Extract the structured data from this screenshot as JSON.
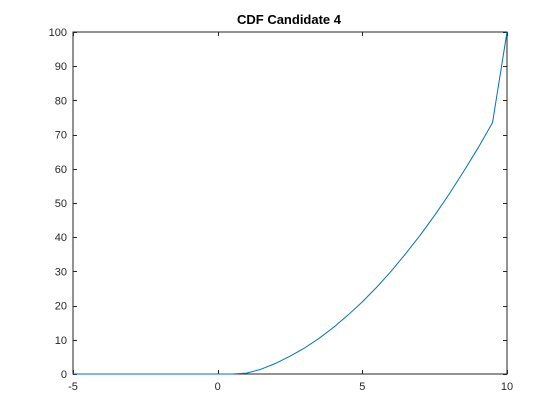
{
  "chart_data": {
    "type": "line",
    "title": "CDF Candidate 4",
    "xlabel": "",
    "ylabel": "",
    "xlim": [
      -5,
      10
    ],
    "ylim": [
      0,
      100
    ],
    "xticks": [
      -5,
      0,
      5,
      10
    ],
    "yticks": [
      0,
      10,
      20,
      30,
      40,
      50,
      60,
      70,
      80,
      90,
      100
    ],
    "grid": false,
    "series": [
      {
        "name": "CDF Candidate 4",
        "color": "#0072BD",
        "x": [
          -5,
          -4,
          -3,
          -2,
          -1,
          0,
          0.5,
          1,
          1.5,
          2,
          2.5,
          3,
          3.5,
          4,
          4.5,
          5,
          5.5,
          6,
          6.5,
          7,
          7.5,
          8,
          8.5,
          9,
          9.5,
          10
        ],
        "y": [
          0,
          0,
          0,
          0,
          0,
          0,
          0,
          0.25,
          1.4,
          3.1,
          5.2,
          7.6,
          10.4,
          13.6,
          17.2,
          21.1,
          25.4,
          30.1,
          35.2,
          40.6,
          46.4,
          52.6,
          59.2,
          66.1,
          73.5,
          100
        ]
      }
    ],
    "axis_color": "#262626",
    "background": "#ffffff"
  }
}
